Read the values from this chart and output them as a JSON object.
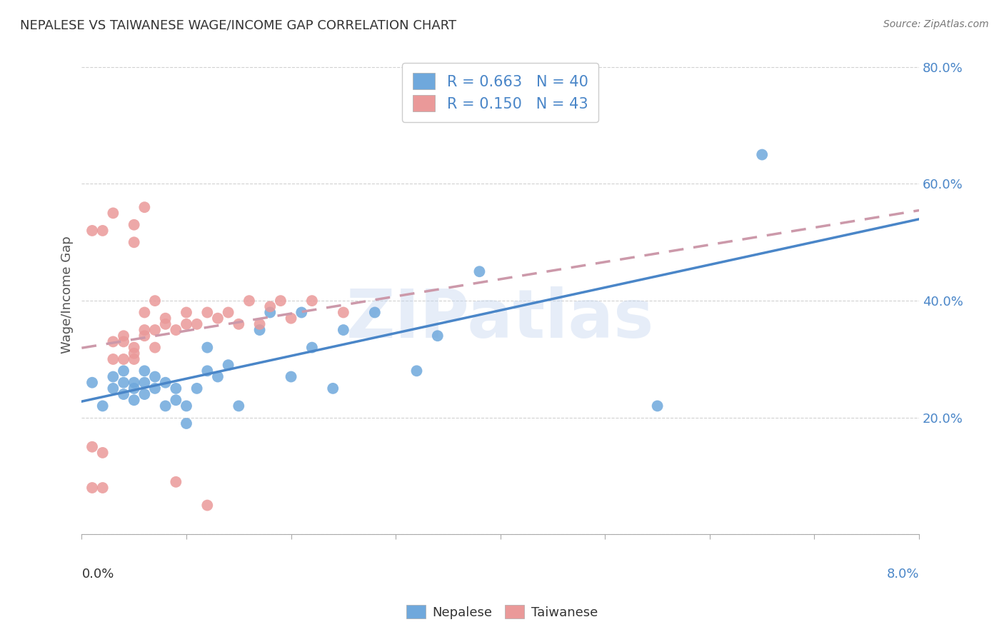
{
  "title": "NEPALESE VS TAIWANESE WAGE/INCOME GAP CORRELATION CHART",
  "source": "Source: ZipAtlas.com",
  "ylabel": "Wage/Income Gap",
  "x_min": 0.0,
  "x_max": 0.08,
  "y_min": 0.0,
  "y_max": 0.82,
  "blue_R": 0.663,
  "blue_N": 40,
  "pink_R": 0.15,
  "pink_N": 43,
  "blue_color": "#6fa8dc",
  "pink_color": "#ea9999",
  "blue_line_color": "#4a86c8",
  "pink_line_color": "#cc99aa",
  "watermark": "ZIPatlas",
  "nepalese_x": [
    0.001,
    0.002,
    0.003,
    0.003,
    0.004,
    0.004,
    0.004,
    0.005,
    0.005,
    0.005,
    0.006,
    0.006,
    0.006,
    0.007,
    0.007,
    0.008,
    0.008,
    0.009,
    0.009,
    0.01,
    0.01,
    0.011,
    0.012,
    0.012,
    0.013,
    0.014,
    0.015,
    0.017,
    0.018,
    0.02,
    0.021,
    0.022,
    0.024,
    0.025,
    0.028,
    0.032,
    0.034,
    0.038,
    0.055,
    0.065
  ],
  "nepalese_y": [
    0.26,
    0.22,
    0.25,
    0.27,
    0.24,
    0.26,
    0.28,
    0.23,
    0.25,
    0.26,
    0.24,
    0.26,
    0.28,
    0.25,
    0.27,
    0.22,
    0.26,
    0.23,
    0.25,
    0.19,
    0.22,
    0.25,
    0.28,
    0.32,
    0.27,
    0.29,
    0.22,
    0.35,
    0.38,
    0.27,
    0.38,
    0.32,
    0.25,
    0.35,
    0.38,
    0.28,
    0.34,
    0.45,
    0.22,
    0.65
  ],
  "taiwanese_x": [
    0.001,
    0.001,
    0.002,
    0.002,
    0.003,
    0.003,
    0.004,
    0.004,
    0.004,
    0.005,
    0.005,
    0.005,
    0.006,
    0.006,
    0.006,
    0.007,
    0.007,
    0.007,
    0.008,
    0.008,
    0.009,
    0.01,
    0.01,
    0.011,
    0.012,
    0.013,
    0.014,
    0.015,
    0.016,
    0.017,
    0.018,
    0.019,
    0.02,
    0.022,
    0.025,
    0.001,
    0.002,
    0.003,
    0.005,
    0.005,
    0.006,
    0.009,
    0.012
  ],
  "taiwanese_y": [
    0.15,
    0.08,
    0.14,
    0.08,
    0.3,
    0.33,
    0.34,
    0.3,
    0.33,
    0.3,
    0.31,
    0.32,
    0.34,
    0.35,
    0.38,
    0.32,
    0.35,
    0.4,
    0.36,
    0.37,
    0.35,
    0.36,
    0.38,
    0.36,
    0.38,
    0.37,
    0.38,
    0.36,
    0.4,
    0.36,
    0.39,
    0.4,
    0.37,
    0.4,
    0.38,
    0.52,
    0.52,
    0.55,
    0.5,
    0.53,
    0.56,
    0.09,
    0.05
  ]
}
